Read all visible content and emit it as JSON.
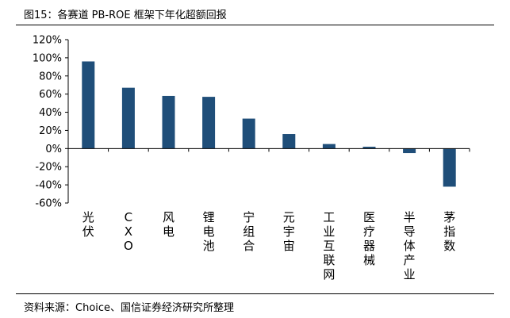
{
  "figure": {
    "title": "图15：各赛道 PB-ROE 框架下年化超额回报",
    "source": "资料来源：Choice、国信证券经济研究所整理"
  },
  "colors": {
    "bar": "#1f4e79",
    "axis": "#000000"
  },
  "chart_data": {
    "type": "bar",
    "categories": [
      "光伏",
      "CXO",
      "风电",
      "锂电池",
      "宁组合",
      "元宇宙",
      "工业互联网",
      "医疗器械",
      "半导体产业",
      "茅指数"
    ],
    "values": [
      96,
      67,
      58,
      57,
      33,
      16,
      5,
      2,
      -5,
      -42
    ],
    "ylim": [
      -60,
      120
    ],
    "yticks": [
      120,
      100,
      80,
      60,
      40,
      20,
      0,
      -20,
      -40,
      -60
    ],
    "ytick_labels": [
      "120%",
      "100%",
      "80%",
      "60%",
      "40%",
      "20%",
      "0%",
      "-20%",
      "-40%",
      "-60%"
    ],
    "grid": false,
    "legend": "none"
  }
}
